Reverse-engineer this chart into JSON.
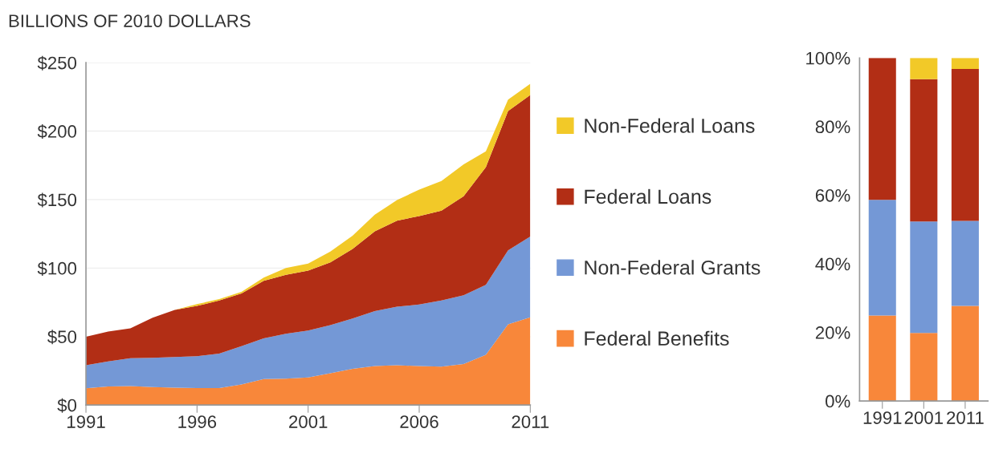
{
  "chart_data": [
    {
      "type": "area",
      "stacked": true,
      "title": "BILLIONS OF 2010 DOLLARS",
      "x": [
        1991,
        1992,
        1993,
        1994,
        1995,
        1996,
        1997,
        1998,
        1999,
        2000,
        2001,
        2002,
        2003,
        2004,
        2005,
        2006,
        2007,
        2008,
        2009,
        2010,
        2011
      ],
      "series": [
        {
          "name": "Federal Benefits",
          "color": "#f8873a",
          "values": [
            12.2,
            13.5,
            13.9,
            13.1,
            12.7,
            12.4,
            12.4,
            15,
            18.9,
            19.3,
            20.1,
            23.2,
            26.4,
            28.4,
            29,
            28.4,
            28,
            29.9,
            36.7,
            58.9,
            64.1
          ]
        },
        {
          "name": "Non-Federal Grants",
          "color": "#7498d6",
          "values": [
            16.8,
            18.4,
            20.3,
            21.3,
            22.4,
            23.3,
            25.2,
            27.9,
            29.7,
            32.8,
            34.3,
            35.1,
            36.7,
            40.1,
            42.8,
            45,
            48.3,
            50.2,
            51.1,
            54,
            58.9
          ]
        },
        {
          "name": "Federal Loans",
          "color": "#b22e15",
          "values": [
            20.8,
            21.8,
            21.8,
            29.3,
            34.4,
            36.7,
            38.7,
            38.6,
            42.1,
            42.9,
            43.7,
            45.9,
            50.8,
            58.3,
            62.8,
            64.6,
            65.6,
            72.4,
            85.9,
            101.8,
            103.3
          ]
        },
        {
          "name": "Non-Federal Loans",
          "color": "#f2c928",
          "values": [
            0,
            0,
            0,
            0,
            0,
            1.3,
            1,
            1.1,
            2.3,
            5,
            5.2,
            7.8,
            9.7,
            12.2,
            15,
            19.3,
            21.6,
            23.2,
            11.6,
            8.3,
            8.3
          ]
        }
      ],
      "xlim": [
        1991,
        2011
      ],
      "xticks": [
        1991,
        1996,
        2001,
        2006,
        2011
      ],
      "ylim": [
        0,
        250
      ],
      "yticks": [
        {
          "value": 0,
          "label": "$0"
        },
        {
          "value": 50,
          "label": "$50"
        },
        {
          "value": 100,
          "label": "$100"
        },
        {
          "value": 150,
          "label": "$150"
        },
        {
          "value": 200,
          "label": "$200"
        },
        {
          "value": 250,
          "label": "$250"
        }
      ],
      "grid": "y",
      "legend": "right"
    },
    {
      "type": "bar",
      "stacked": true,
      "categories": [
        "1991",
        "2001",
        "2011"
      ],
      "series": [
        {
          "color": "#f8873a",
          "values": [
            24.9,
            19.8,
            27.7
          ]
        },
        {
          "color": "#7498d6",
          "values": [
            33.7,
            32.5,
            24.8
          ]
        },
        {
          "color": "#b22e15",
          "values": [
            41.4,
            41.5,
            44.3
          ]
        },
        {
          "color": "#f2c928",
          "values": [
            0,
            6.2,
            3.2
          ]
        }
      ],
      "ylim": [
        0,
        100
      ],
      "yticks": [
        {
          "value": 0,
          "label": "0%"
        },
        {
          "value": 20,
          "label": "20%"
        },
        {
          "value": 40,
          "label": "40%"
        },
        {
          "value": 60,
          "label": "60%"
        },
        {
          "value": 80,
          "label": "80%"
        },
        {
          "value": 100,
          "label": "100%"
        }
      ]
    }
  ]
}
